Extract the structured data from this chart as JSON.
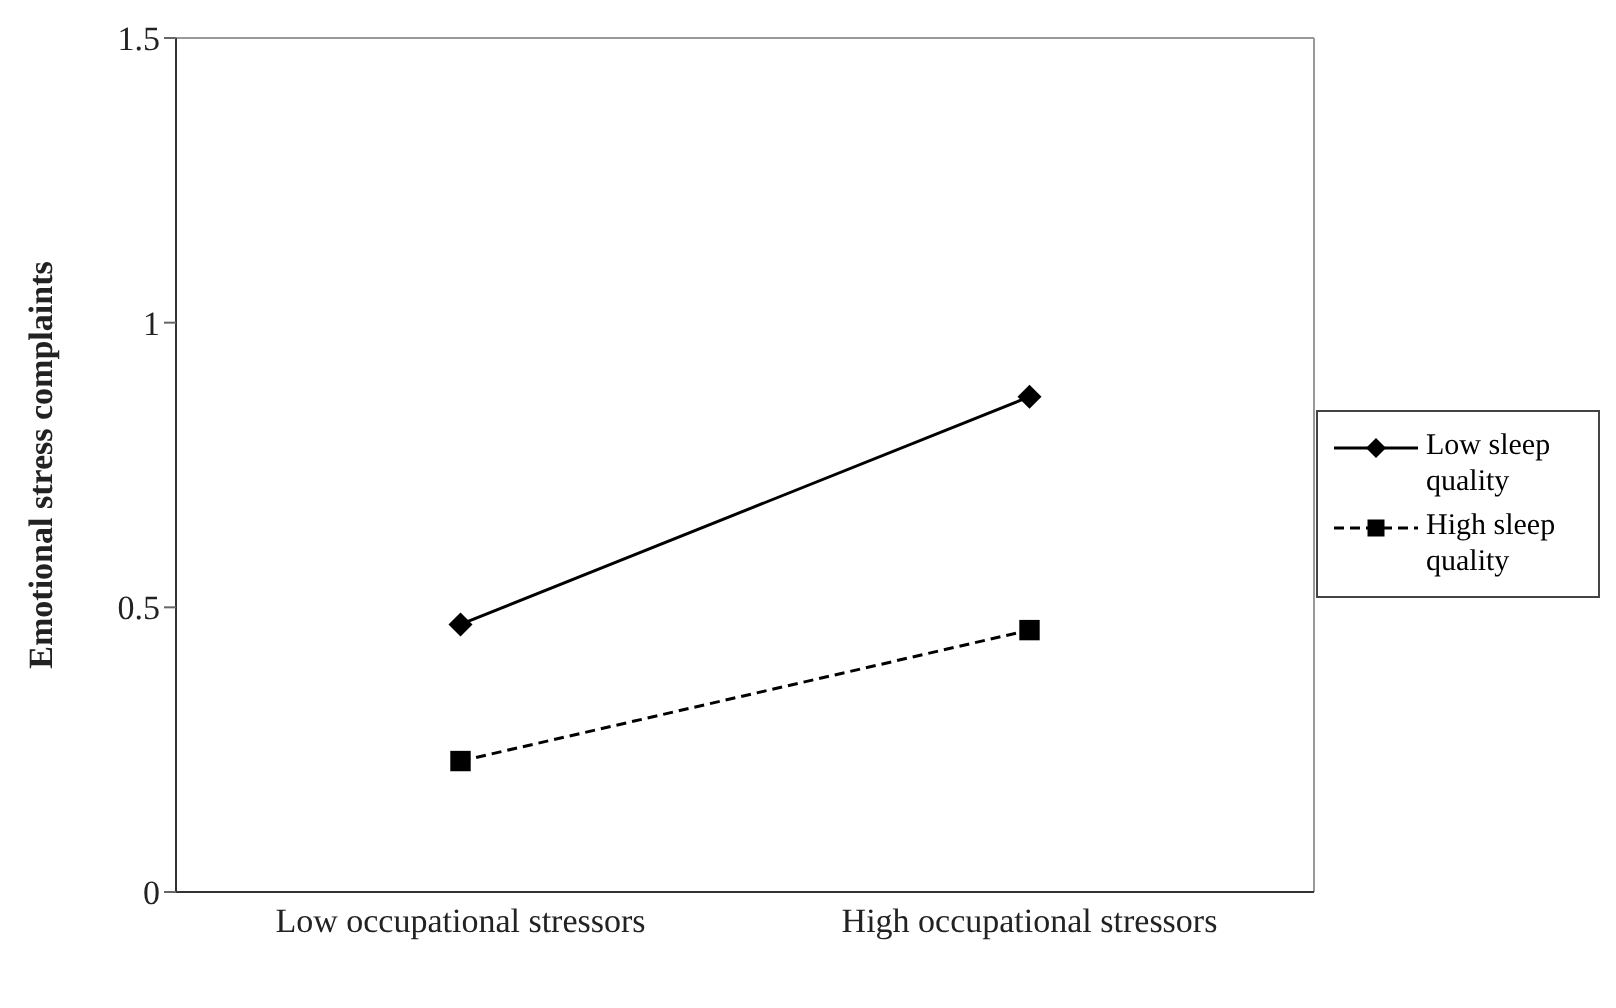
{
  "chart_data": {
    "type": "line",
    "ylabel": "Emotional stress complaints",
    "categories": [
      "Low occupational stressors",
      "High occupational stressors"
    ],
    "series": [
      {
        "name": "Low sleep quality",
        "color": "#000000",
        "values": [
          0.47,
          0.87
        ],
        "marker": "diamond",
        "line_style": "solid"
      },
      {
        "name": "High sleep quality",
        "color": "#000000",
        "values": [
          0.23,
          0.46
        ],
        "marker": "square",
        "line_style": "dashed"
      }
    ],
    "ylim": [
      0,
      1.5
    ],
    "yticks": [
      0,
      0.5,
      1,
      1.5
    ],
    "grid": false,
    "legend": "right"
  }
}
